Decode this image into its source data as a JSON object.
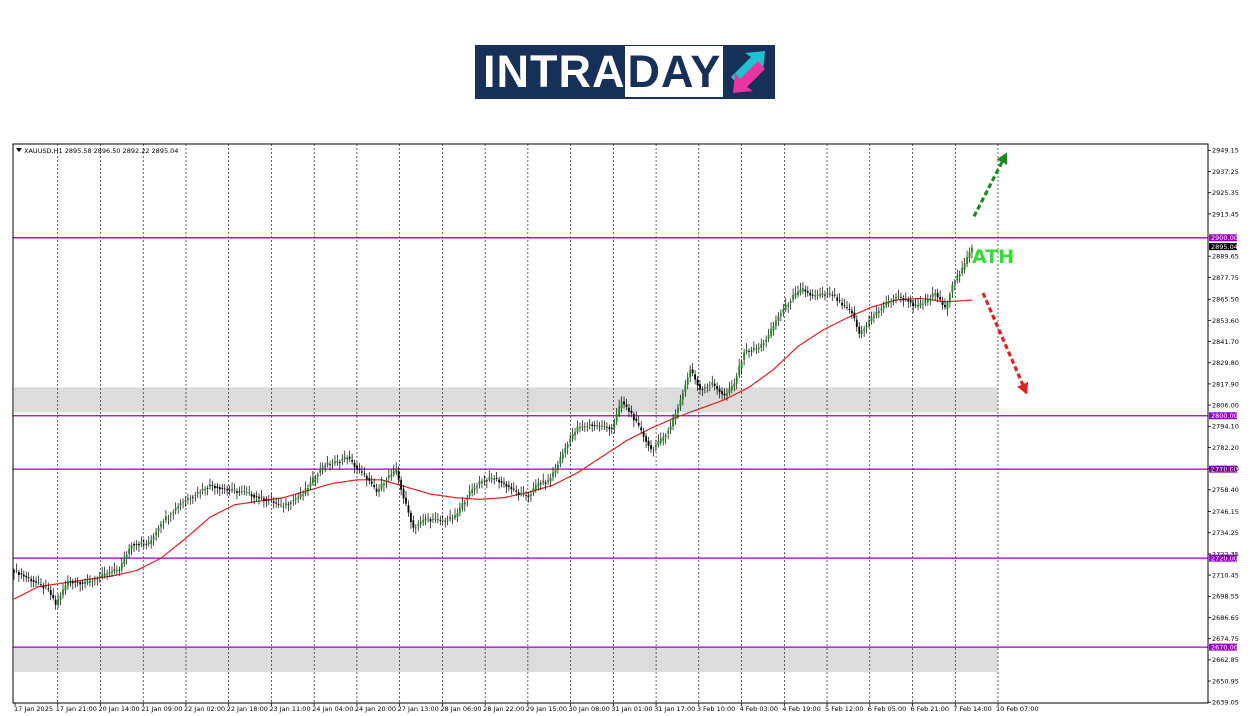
{
  "logo": {
    "part1": "INTRA",
    "part2": "DAY",
    "colors": {
      "background": "#17305a",
      "arrow_up": "#20c2cf",
      "arrow_down": "#e8359f"
    }
  },
  "chart_data": {
    "type": "candlestick",
    "header": "XAUUSD,H1  2895.58 2896.50 2892.22 2895.04",
    "current_price": 2895.04,
    "current_price_label": "2895.04",
    "ylim": [
      2639.0,
      2955.0
    ],
    "y_ticks": [
      2949.15,
      2937.25,
      2925.35,
      2913.45,
      2889.65,
      2877.75,
      2865.5,
      2853.6,
      2841.7,
      2829.8,
      2817.9,
      2806.0,
      2794.1,
      2782.2,
      2770.3,
      2758.4,
      2746.15,
      2734.25,
      2722.35,
      2710.45,
      2698.55,
      2686.65,
      2674.75,
      2662.85,
      2650.95,
      2639.05
    ],
    "x_ticks": [
      "17 Jan 2025",
      "17 Jan 21:00",
      "20 Jan 14:00",
      "21 Jan 09:00",
      "22 Jan 02:00",
      "22 Jan 18:00",
      "23 Jan 11:00",
      "24 Jan 04:00",
      "24 Jan 20:00",
      "27 Jan 13:00",
      "28 Jan 06:00",
      "28 Jan 22:00",
      "29 Jan 15:00",
      "30 Jan 08:00",
      "31 Jan 01:00",
      "31 Jan 17:00",
      "3 Feb 10:00",
      "4 Feb 03:00",
      "4 Feb 19:00",
      "5 Feb 12:00",
      "6 Feb 05:00",
      "6 Feb 21:00",
      "7 Feb 14:00",
      "10 Feb 07:00"
    ],
    "levels": [
      {
        "value": 2900.0,
        "label": "2900.00"
      },
      {
        "value": 2800.0,
        "label": "2800.00"
      },
      {
        "value": 2770.0,
        "label": "2770.00"
      },
      {
        "value": 2720.0,
        "label": "2720.00"
      },
      {
        "value": 2670.0,
        "label": "2670.00"
      }
    ],
    "zones": [
      {
        "from": 2802.0,
        "to": 2816.0
      },
      {
        "from": 2656.0,
        "to": 2670.0
      }
    ],
    "price_path": [
      [
        0,
        2713
      ],
      [
        8,
        2707
      ],
      [
        14,
        2702
      ],
      [
        17,
        2694
      ],
      [
        22,
        2707
      ],
      [
        30,
        2706
      ],
      [
        36,
        2710
      ],
      [
        43,
        2714
      ],
      [
        48,
        2728
      ],
      [
        55,
        2728
      ],
      [
        60,
        2740
      ],
      [
        68,
        2751
      ],
      [
        75,
        2757
      ],
      [
        80,
        2761
      ],
      [
        88,
        2758
      ],
      [
        94,
        2757
      ],
      [
        100,
        2754
      ],
      [
        105,
        2752
      ],
      [
        109,
        2749
      ],
      [
        113,
        2752
      ],
      [
        118,
        2756
      ],
      [
        122,
        2764
      ],
      [
        126,
        2772
      ],
      [
        132,
        2774
      ],
      [
        136,
        2777
      ],
      [
        140,
        2770
      ],
      [
        144,
        2765
      ],
      [
        148,
        2757
      ],
      [
        152,
        2765
      ],
      [
        156,
        2769
      ],
      [
        159,
        2754
      ],
      [
        163,
        2737
      ],
      [
        168,
        2742
      ],
      [
        175,
        2741
      ],
      [
        180,
        2743
      ],
      [
        185,
        2755
      ],
      [
        190,
        2763
      ],
      [
        196,
        2765
      ],
      [
        202,
        2760
      ],
      [
        206,
        2756
      ],
      [
        210,
        2755
      ],
      [
        214,
        2762
      ],
      [
        218,
        2763
      ],
      [
        222,
        2773
      ],
      [
        226,
        2785
      ],
      [
        230,
        2793
      ],
      [
        235,
        2795
      ],
      [
        240,
        2794
      ],
      [
        244,
        2793
      ],
      [
        248,
        2808
      ],
      [
        252,
        2801
      ],
      [
        256,
        2791
      ],
      [
        260,
        2781
      ],
      [
        264,
        2786
      ],
      [
        268,
        2794
      ],
      [
        272,
        2809
      ],
      [
        276,
        2826
      ],
      [
        280,
        2815
      ],
      [
        285,
        2818
      ],
      [
        290,
        2811
      ],
      [
        294,
        2818
      ],
      [
        298,
        2836
      ],
      [
        304,
        2838
      ],
      [
        308,
        2845
      ],
      [
        312,
        2856
      ],
      [
        318,
        2867
      ],
      [
        322,
        2871
      ],
      [
        326,
        2867
      ],
      [
        330,
        2868
      ],
      [
        334,
        2868
      ],
      [
        338,
        2862
      ],
      [
        342,
        2858
      ],
      [
        345,
        2846
      ],
      [
        350,
        2855
      ],
      [
        355,
        2862
      ],
      [
        360,
        2867
      ],
      [
        365,
        2865
      ],
      [
        368,
        2861
      ],
      [
        372,
        2864
      ],
      [
        376,
        2869
      ],
      [
        380,
        2860
      ],
      [
        383,
        2874
      ],
      [
        387,
        2882
      ],
      [
        391,
        2895
      ]
    ],
    "ma_path": [
      [
        0,
        2697
      ],
      [
        10,
        2704
      ],
      [
        20,
        2706
      ],
      [
        30,
        2708
      ],
      [
        40,
        2710
      ],
      [
        50,
        2713
      ],
      [
        60,
        2720
      ],
      [
        70,
        2731
      ],
      [
        80,
        2743
      ],
      [
        90,
        2750
      ],
      [
        100,
        2752
      ],
      [
        110,
        2754
      ],
      [
        120,
        2758
      ],
      [
        130,
        2762
      ],
      [
        140,
        2764
      ],
      [
        150,
        2764
      ],
      [
        160,
        2760
      ],
      [
        170,
        2756
      ],
      [
        180,
        2754
      ],
      [
        190,
        2753
      ],
      [
        200,
        2754
      ],
      [
        210,
        2757
      ],
      [
        220,
        2761
      ],
      [
        230,
        2768
      ],
      [
        240,
        2777
      ],
      [
        250,
        2786
      ],
      [
        260,
        2793
      ],
      [
        270,
        2799
      ],
      [
        280,
        2804
      ],
      [
        290,
        2809
      ],
      [
        300,
        2816
      ],
      [
        310,
        2826
      ],
      [
        320,
        2839
      ],
      [
        330,
        2848
      ],
      [
        340,
        2855
      ],
      [
        350,
        2861
      ],
      [
        360,
        2865
      ],
      [
        370,
        2866
      ],
      [
        380,
        2864
      ],
      [
        391,
        2865
      ]
    ],
    "annotations": {
      "ath_label": "ATH",
      "arrow_up": {
        "from": [
          2912,
          0.0
        ],
        "to": [
          2948,
          0.0
        ]
      },
      "arrow_down": {
        "from": [
          2869,
          0.0
        ],
        "to": [
          2812,
          0.0
        ]
      }
    },
    "colors": {
      "level_line": "#9900cc",
      "zone_fill": "#dcdcdc",
      "candle_up": "#1a8a1a",
      "candle_down": "#000000",
      "ma_line": "#e02020",
      "arrow_up": "#1a8a1a",
      "arrow_down": "#dd2222",
      "ath": "#33dd33",
      "price_label_bg": "#000000"
    }
  }
}
